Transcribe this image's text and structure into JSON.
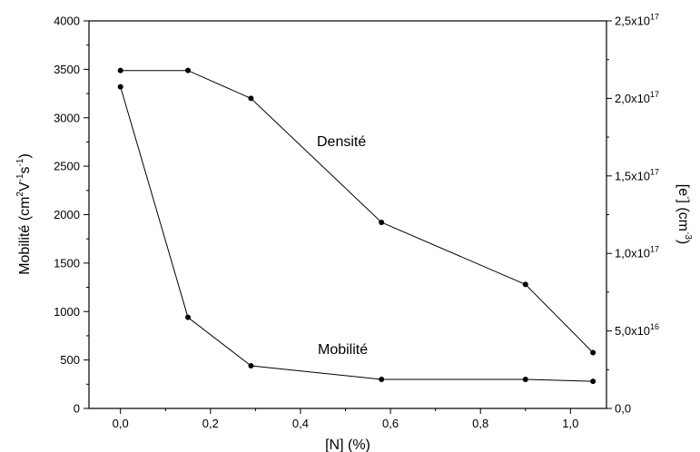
{
  "chart_data": {
    "type": "line",
    "xlabel": "[N] (%)",
    "ylabel_left": {
      "prefix": "Mobilité (cm",
      "parts": [
        {
          "text": "2",
          "sup": true
        },
        {
          "text": "V",
          "sup": false
        },
        {
          "text": "-1",
          "sup": true
        },
        {
          "text": "s",
          "sup": false
        },
        {
          "text": "-1",
          "sup": true
        },
        {
          "text": ")",
          "sup": false
        }
      ]
    },
    "ylabel_right": {
      "parts": [
        {
          "text": "[e",
          "sup": false
        },
        {
          "text": "-",
          "sup": true
        },
        {
          "text": "] (cm",
          "sup": false
        },
        {
          "text": "-3",
          "sup": true
        },
        {
          "text": ")",
          "sup": false
        }
      ]
    },
    "xlim": [
      -0.07,
      1.08
    ],
    "xticks": [
      {
        "v": 0.0,
        "label": "0,0"
      },
      {
        "v": 0.2,
        "label": "0,2"
      },
      {
        "v": 0.4,
        "label": "0,4"
      },
      {
        "v": 0.6,
        "label": "0,6"
      },
      {
        "v": 0.8,
        "label": "0,8"
      },
      {
        "v": 1.0,
        "label": "1,0"
      }
    ],
    "ylim_left": [
      0,
      4000
    ],
    "yticks_left": [
      {
        "v": 0,
        "label": "0"
      },
      {
        "v": 500,
        "label": "500"
      },
      {
        "v": 1000,
        "label": "1000"
      },
      {
        "v": 1500,
        "label": "1500"
      },
      {
        "v": 2000,
        "label": "2000"
      },
      {
        "v": 2500,
        "label": "2500"
      },
      {
        "v": 3000,
        "label": "3000"
      },
      {
        "v": 3500,
        "label": "3500"
      },
      {
        "v": 4000,
        "label": "4000"
      }
    ],
    "ylim_right": [
      0,
      2.5e+17
    ],
    "yticks_right": [
      {
        "v": 0,
        "mant": "0,0",
        "exp": ""
      },
      {
        "v": 5e+16,
        "mant": "5,0x10",
        "exp": "16"
      },
      {
        "v": 1e+17,
        "mant": "1,0x10",
        "exp": "17"
      },
      {
        "v": 1.5e+17,
        "mant": "1,5x10",
        "exp": "17"
      },
      {
        "v": 2e+17,
        "mant": "2,0x10",
        "exp": "17"
      },
      {
        "v": 2.5e+17,
        "mant": "2,5x10",
        "exp": "17"
      }
    ],
    "series": [
      {
        "name": "Densité",
        "axis": "right",
        "x": [
          0.0,
          0.15,
          0.29,
          0.58,
          0.9,
          1.05
        ],
        "values": [
          2.18e+17,
          2.18e+17,
          2e+17,
          1.2e+17,
          8e+16,
          3.6e+16
        ]
      },
      {
        "name": "Mobilité",
        "axis": "left",
        "x": [
          0.0,
          0.15,
          0.29,
          0.58,
          0.9,
          1.05
        ],
        "values": [
          3320,
          940,
          440,
          300,
          300,
          280
        ]
      }
    ],
    "grid": false,
    "legend": "none"
  }
}
